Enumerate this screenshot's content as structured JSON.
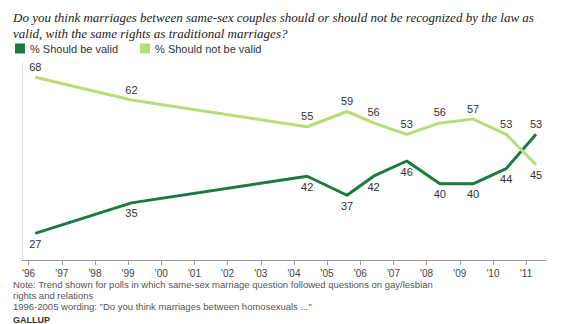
{
  "chart_data": {
    "type": "line",
    "title": "Do you think marriages between same-sex couples should or should not be recognized by the law as valid, with the same rights as traditional marriages?",
    "x": [
      1996.2,
      1999.1,
      2004.4,
      2005.6,
      2006.4,
      2007.4,
      2008.4,
      2009.4,
      2010.4,
      2011.3
    ],
    "series": [
      {
        "name": "% Should be valid",
        "color": "#1b7a3e",
        "values": [
          27,
          35,
          42,
          37,
          42,
          46,
          40,
          40,
          44,
          53
        ]
      },
      {
        "name": "% Should not be valid",
        "color": "#b6dd78",
        "values": [
          68,
          62,
          55,
          59,
          56,
          53,
          56,
          57,
          53,
          45
        ]
      }
    ],
    "xlim": [
      1995.8,
      2011.6
    ],
    "xticks": [
      {
        "value": 1996,
        "label": "'96"
      },
      {
        "value": 1997,
        "label": "'97"
      },
      {
        "value": 1998,
        "label": "'98"
      },
      {
        "value": 1999,
        "label": "'99"
      },
      {
        "value": 2000,
        "label": "'00"
      },
      {
        "value": 2001,
        "label": "'01"
      },
      {
        "value": 2002,
        "label": "'02"
      },
      {
        "value": 2003,
        "label": "'03"
      },
      {
        "value": 2004,
        "label": "'04"
      },
      {
        "value": 2005,
        "label": "'05"
      },
      {
        "value": 2006,
        "label": "'06"
      },
      {
        "value": 2007,
        "label": "'07"
      },
      {
        "value": 2008,
        "label": "'08"
      },
      {
        "value": 2009,
        "label": "'09"
      },
      {
        "value": 2010,
        "label": "'10"
      },
      {
        "value": 2011,
        "label": "'11"
      }
    ],
    "ylim": [
      20,
      72
    ],
    "tick_labels": "x",
    "grid": false,
    "data_labels": true,
    "legend": "top-left",
    "notes": [
      "Note: Trend shown for polls in which same-sex marriage question followed questions on gay/lesbian rights and relations",
      "1996-2005 wording: \"Do you think marriages between homosexuals ...\""
    ],
    "source": "GALLUP"
  }
}
